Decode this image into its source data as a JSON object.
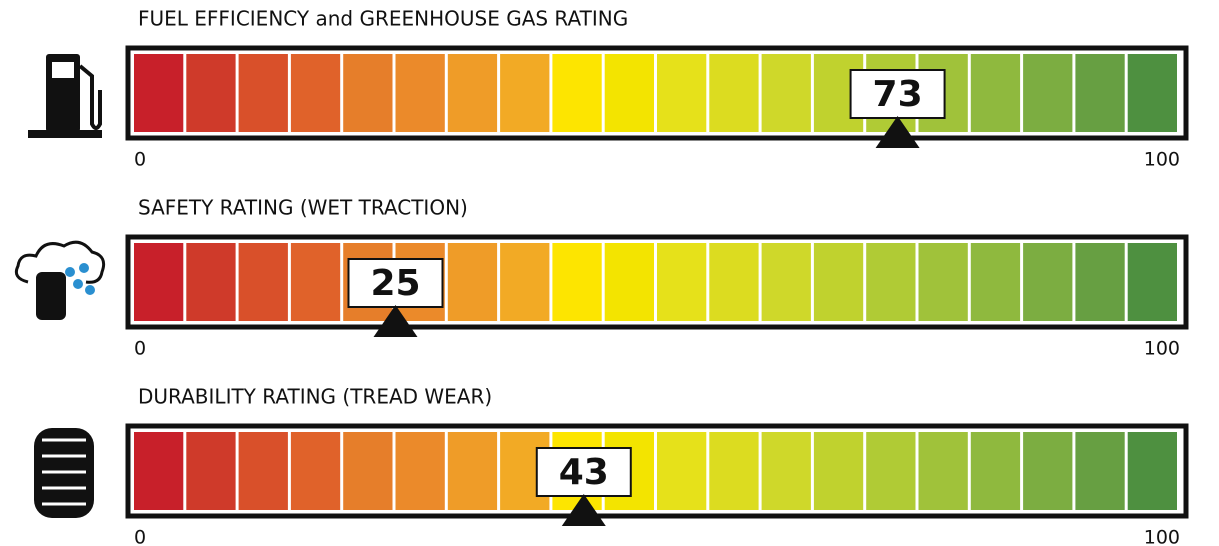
{
  "chart_data": [
    {
      "type": "gauge",
      "title": "FUEL EFFICIENCY and GREENHOUSE GAS RATING",
      "value": 73,
      "xlim": [
        0,
        100
      ],
      "xticks": [
        0,
        100
      ],
      "colors": [
        "#c8202a",
        "#cf3a2a",
        "#d9502a",
        "#e0622a",
        "#e67e2a",
        "#eb8a2a",
        "#ef9c28",
        "#f2aa25",
        "#fde500",
        "#f3e400",
        "#e6e11a",
        "#dcdc20",
        "#cfd82a",
        "#c0d22e",
        "#b0cb35",
        "#a0c23a",
        "#8fb93e",
        "#7cad41",
        "#679f42",
        "#4e9040"
      ]
    },
    {
      "type": "gauge",
      "title": "SAFETY RATING (WET TRACTION)",
      "value": 25,
      "xlim": [
        0,
        100
      ],
      "xticks": [
        0,
        100
      ],
      "colors": [
        "#c8202a",
        "#cf3a2a",
        "#d9502a",
        "#e0622a",
        "#e67e2a",
        "#eb8a2a",
        "#ef9c28",
        "#f2aa25",
        "#fde500",
        "#f3e400",
        "#e6e11a",
        "#dcdc20",
        "#cfd82a",
        "#c0d22e",
        "#b0cb35",
        "#a0c23a",
        "#8fb93e",
        "#7cad41",
        "#679f42",
        "#4e9040"
      ]
    },
    {
      "type": "gauge",
      "title": "DURABILITY RATING (TREAD WEAR)",
      "value": 43,
      "xlim": [
        0,
        100
      ],
      "xticks": [
        0,
        100
      ],
      "colors": [
        "#c8202a",
        "#cf3a2a",
        "#d9502a",
        "#e0622a",
        "#e67e2a",
        "#eb8a2a",
        "#ef9c28",
        "#f2aa25",
        "#fde500",
        "#f3e400",
        "#e6e11a",
        "#dcdc20",
        "#cfd82a",
        "#c0d22e",
        "#b0cb35",
        "#a0c23a",
        "#8fb93e",
        "#7cad41",
        "#679f42",
        "#4e9040"
      ]
    }
  ]
}
